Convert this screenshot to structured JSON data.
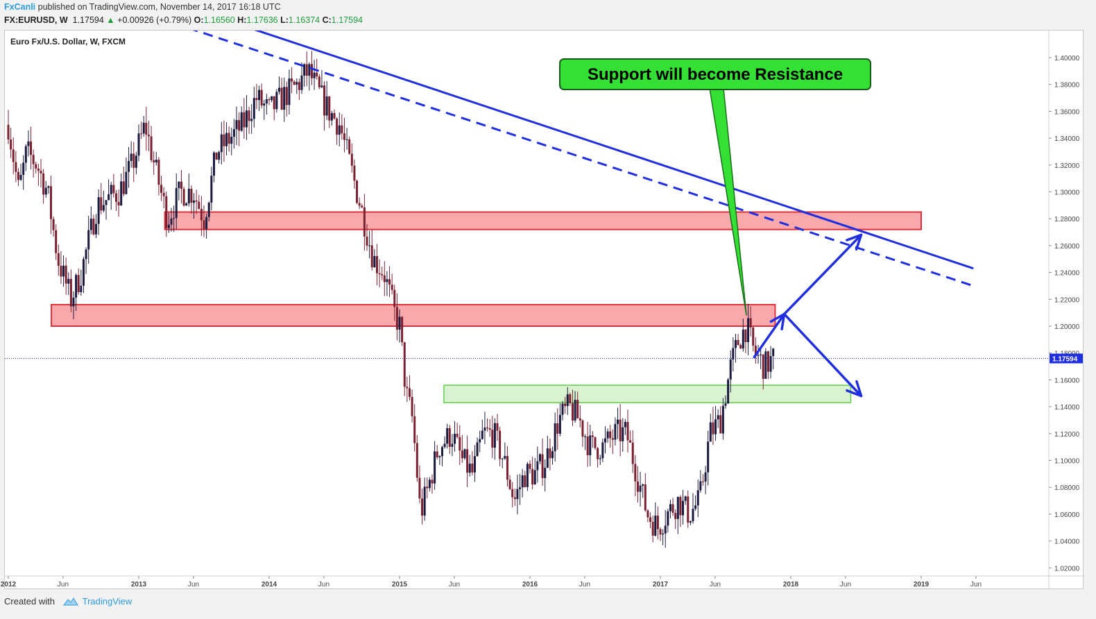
{
  "header": {
    "author": "FxCanli",
    "published_text": "published on TradingView.com, November 14, 2017 16:18 UTC",
    "symbol": "FX:EURUSD, W",
    "last": "1.17594",
    "change": "+0.00926 (+0.79%)",
    "o_label": "O:",
    "o_value": "1.16560",
    "h_label": "H:",
    "h_value": "1.17636",
    "l_label": "L:",
    "l_value": "1.16374",
    "c_label": "C:",
    "c_value": "1.17594"
  },
  "footer": {
    "created_with": "Created with",
    "brand": "TradingView"
  },
  "colors": {
    "up": "#1a1a40",
    "down": "#7a2030",
    "zone_red": "#f9a9ab",
    "zone_green": "#d9f2cf",
    "line": "#1f2fe0",
    "callout": "#33e033"
  },
  "chart_data": {
    "type": "candlestick",
    "title": "Euro Fx/U.S. Dollar, W, FXCM",
    "ylim": [
      1.01,
      1.415
    ],
    "y_ticks": [
      "1.40000",
      "1.38000",
      "1.36000",
      "1.34000",
      "1.32000",
      "1.30000",
      "1.28000",
      "1.26000",
      "1.24000",
      "1.22000",
      "1.20000",
      "1.18000",
      "1.16000",
      "1.14000",
      "1.12000",
      "1.10000",
      "1.08000",
      "1.06000",
      "1.04000",
      "1.02000"
    ],
    "x_ticks": [
      {
        "label": "2012",
        "t": 2012.0
      },
      {
        "label": "Jun",
        "t": 2012.42
      },
      {
        "label": "2013",
        "t": 2013.0
      },
      {
        "label": "Jun",
        "t": 2013.42
      },
      {
        "label": "2014",
        "t": 2014.0
      },
      {
        "label": "Jun",
        "t": 2014.42
      },
      {
        "label": "2015",
        "t": 2015.0
      },
      {
        "label": "Jun",
        "t": 2015.42
      },
      {
        "label": "2016",
        "t": 2016.0
      },
      {
        "label": "Jun",
        "t": 2016.42
      },
      {
        "label": "2017",
        "t": 2017.0
      },
      {
        "label": "Jun",
        "t": 2017.42
      },
      {
        "label": "2018",
        "t": 2018.0
      },
      {
        "label": "Jun",
        "t": 2018.42
      },
      {
        "label": "2019",
        "t": 2019.0
      },
      {
        "label": "Jun",
        "t": 2019.42
      }
    ],
    "last_price": 1.17594,
    "last_price_label": "1.17594",
    "price_path": [
      [
        2012.0,
        1.35
      ],
      [
        2012.08,
        1.3
      ],
      [
        2012.14,
        1.33
      ],
      [
        2012.22,
        1.32
      ],
      [
        2012.3,
        1.3
      ],
      [
        2012.38,
        1.25
      ],
      [
        2012.48,
        1.22
      ],
      [
        2012.56,
        1.24
      ],
      [
        2012.68,
        1.29
      ],
      [
        2012.85,
        1.3
      ],
      [
        2012.95,
        1.32
      ],
      [
        2013.05,
        1.35
      ],
      [
        2013.12,
        1.32
      ],
      [
        2013.22,
        1.28
      ],
      [
        2013.32,
        1.3
      ],
      [
        2013.42,
        1.3
      ],
      [
        2013.5,
        1.28
      ],
      [
        2013.6,
        1.33
      ],
      [
        2013.7,
        1.34
      ],
      [
        2013.8,
        1.35
      ],
      [
        2013.9,
        1.37
      ],
      [
        2014.0,
        1.36
      ],
      [
        2014.1,
        1.37
      ],
      [
        2014.22,
        1.38
      ],
      [
        2014.3,
        1.39
      ],
      [
        2014.4,
        1.37
      ],
      [
        2014.46,
        1.36
      ],
      [
        2014.54,
        1.35
      ],
      [
        2014.62,
        1.32
      ],
      [
        2014.7,
        1.29
      ],
      [
        2014.8,
        1.25
      ],
      [
        2014.88,
        1.24
      ],
      [
        2014.96,
        1.21
      ],
      [
        2015.0,
        1.2
      ],
      [
        2015.05,
        1.15
      ],
      [
        2015.1,
        1.13
      ],
      [
        2015.16,
        1.06
      ],
      [
        2015.22,
        1.08
      ],
      [
        2015.3,
        1.11
      ],
      [
        2015.4,
        1.12
      ],
      [
        2015.48,
        1.1
      ],
      [
        2015.56,
        1.09
      ],
      [
        2015.64,
        1.12
      ],
      [
        2015.72,
        1.12
      ],
      [
        2015.8,
        1.1
      ],
      [
        2015.88,
        1.07
      ],
      [
        2015.96,
        1.09
      ],
      [
        2016.04,
        1.09
      ],
      [
        2016.12,
        1.1
      ],
      [
        2016.22,
        1.13
      ],
      [
        2016.3,
        1.14
      ],
      [
        2016.38,
        1.13
      ],
      [
        2016.46,
        1.11
      ],
      [
        2016.56,
        1.11
      ],
      [
        2016.66,
        1.12
      ],
      [
        2016.74,
        1.12
      ],
      [
        2016.82,
        1.09
      ],
      [
        2016.9,
        1.06
      ],
      [
        2016.98,
        1.05
      ],
      [
        2017.05,
        1.06
      ],
      [
        2017.14,
        1.07
      ],
      [
        2017.22,
        1.06
      ],
      [
        2017.3,
        1.07
      ],
      [
        2017.38,
        1.12
      ],
      [
        2017.46,
        1.13
      ],
      [
        2017.54,
        1.17
      ],
      [
        2017.6,
        1.19
      ],
      [
        2017.66,
        1.2
      ],
      [
        2017.72,
        1.18
      ],
      [
        2017.8,
        1.17
      ],
      [
        2017.87,
        1.176
      ]
    ],
    "zones": [
      {
        "kind": "resistance",
        "t0": 2013.2,
        "t1": 2019.0,
        "y0": 1.272,
        "y1": 1.285
      },
      {
        "kind": "resistance",
        "t0": 2012.33,
        "t1": 2017.88,
        "y0": 1.2,
        "y1": 1.216
      },
      {
        "kind": "support",
        "t0": 2015.34,
        "t1": 2018.46,
        "y0": 1.143,
        "y1": 1.156
      }
    ],
    "trendlines": [
      {
        "style": "solid",
        "t0": 2013.76,
        "y0": 1.425,
        "t1": 2019.4,
        "y1": 1.243
      },
      {
        "style": "dashed",
        "t0": 2013.38,
        "y0": 1.422,
        "t1": 2019.4,
        "y1": 1.23
      }
    ],
    "arrows": [
      {
        "t0": 2017.72,
        "y0": 1.177,
        "t1": 2017.95,
        "y1": 1.209
      },
      {
        "t0": 2017.95,
        "y0": 1.209,
        "t1": 2018.54,
        "y1": 1.268
      },
      {
        "t0": 2017.95,
        "y0": 1.209,
        "t1": 2018.54,
        "y1": 1.148
      }
    ],
    "annotation": {
      "text": "Support will become Resistance",
      "pointer_t": 2017.66,
      "pointer_y": 1.208
    }
  }
}
